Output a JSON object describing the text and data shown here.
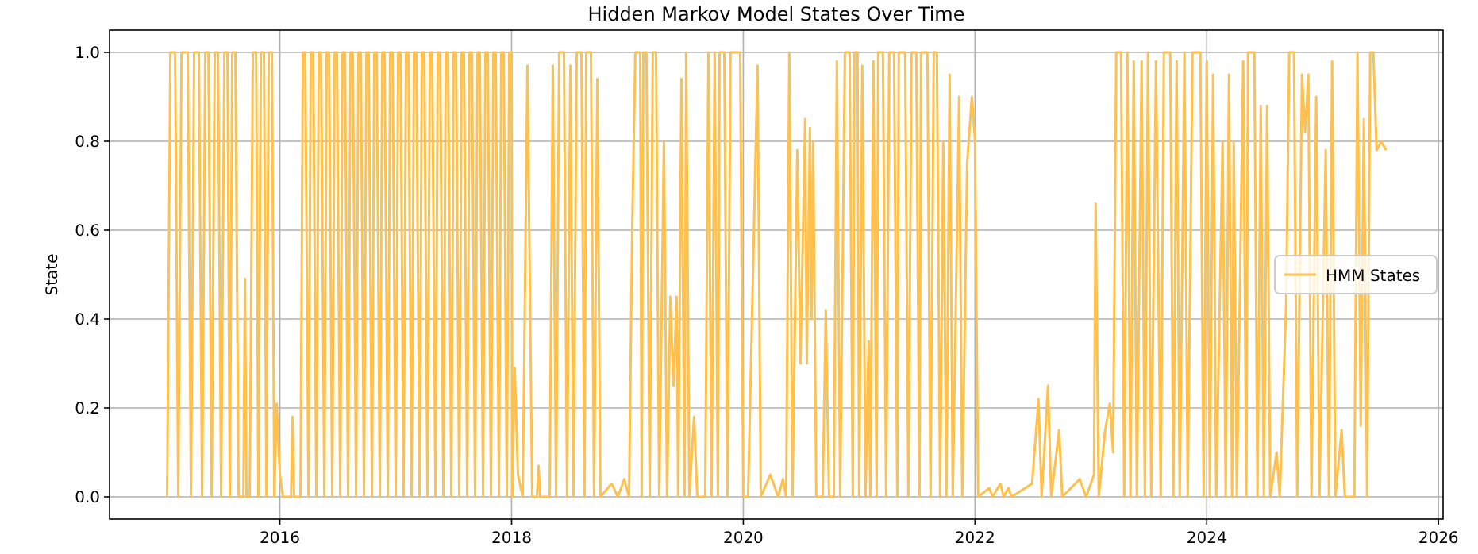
{
  "chart_data": {
    "type": "line",
    "title": "Hidden Markov Model States Over Time",
    "ylabel": "State",
    "xlim": [
      2014.53,
      2026.04
    ],
    "ylim": [
      -0.05,
      1.05
    ],
    "xticks": [
      2016,
      2018,
      2020,
      2022,
      2024,
      2026
    ],
    "yticks": [
      {
        "value": 0,
        "label": "0.0"
      },
      {
        "value": 0.2,
        "label": "0.2"
      },
      {
        "value": 0.4,
        "label": "0.4"
      },
      {
        "value": 0.6,
        "label": "0.6"
      },
      {
        "value": 0.8,
        "label": "0.8"
      },
      {
        "value": 1,
        "label": "1.0"
      }
    ],
    "grid": true,
    "legend": "right",
    "line_style": "solid",
    "marker": "none",
    "x": [
      2015.027,
      2015.055,
      2015.096,
      2015.123,
      2015.151,
      2015.205,
      2015.233,
      2015.26,
      2015.301,
      2015.329,
      2015.356,
      2015.384,
      2015.411,
      2015.438,
      2015.466,
      2015.493,
      2015.521,
      2015.548,
      2015.568,
      2015.589,
      2015.616,
      2015.644,
      2015.685,
      2015.699,
      2015.712,
      2015.74,
      2015.767,
      2015.795,
      2015.815,
      2015.836,
      2015.863,
      2015.884,
      2015.904,
      2015.932,
      2015.952,
      2015.973,
      2016.0,
      2016.027,
      2016.096,
      2016.11,
      2016.123,
      2016.164,
      2016.178,
      2016.199,
      2016.219,
      2016.247,
      2016.267,
      2016.288,
      2016.315,
      2016.336,
      2016.356,
      2016.384,
      2016.404,
      2016.425,
      2016.452,
      2016.473,
      2016.493,
      2016.521,
      2016.541,
      2016.562,
      2016.589,
      2016.61,
      2016.63,
      2016.658,
      2016.678,
      2016.699,
      2016.726,
      2016.747,
      2016.767,
      2016.795,
      2016.815,
      2016.836,
      2016.863,
      2016.884,
      2016.904,
      2016.932,
      2016.952,
      2016.973,
      2017.0,
      2017.021,
      2017.041,
      2017.068,
      2017.089,
      2017.11,
      2017.137,
      2017.158,
      2017.178,
      2017.206,
      2017.226,
      2017.247,
      2017.274,
      2017.295,
      2017.315,
      2017.343,
      2017.363,
      2017.384,
      2017.411,
      2017.432,
      2017.452,
      2017.48,
      2017.5,
      2017.521,
      2017.548,
      2017.569,
      2017.589,
      2017.617,
      2017.637,
      2017.658,
      2017.685,
      2017.706,
      2017.726,
      2017.754,
      2017.774,
      2017.795,
      2017.822,
      2017.843,
      2017.863,
      2017.891,
      2017.911,
      2017.932,
      2017.959,
      2017.98,
      2018.0,
      2018.007,
      2018.027,
      2018.055,
      2018.096,
      2018.137,
      2018.178,
      2018.219,
      2018.233,
      2018.247,
      2018.329,
      2018.356,
      2018.384,
      2018.411,
      2018.452,
      2018.479,
      2018.507,
      2018.534,
      2018.562,
      2018.603,
      2018.63,
      2018.644,
      2018.685,
      2018.712,
      2018.74,
      2018.767,
      2018.863,
      2018.918,
      2018.973,
      2019.014,
      2019.041,
      2019.068,
      2019.11,
      2019.123,
      2019.137,
      2019.164,
      2019.192,
      2019.219,
      2019.247,
      2019.274,
      2019.315,
      2019.342,
      2019.37,
      2019.397,
      2019.425,
      2019.438,
      2019.466,
      2019.493,
      2019.507,
      2019.534,
      2019.575,
      2019.603,
      2019.671,
      2019.699,
      2019.726,
      2019.753,
      2019.781,
      2019.795,
      2019.836,
      2019.863,
      2019.89,
      2019.973,
      2020.0,
      2020.041,
      2020.123,
      2020.151,
      2020.233,
      2020.301,
      2020.342,
      2020.37,
      2020.397,
      2020.425,
      2020.466,
      2020.493,
      2020.534,
      2020.548,
      2020.575,
      2020.589,
      2020.603,
      2020.63,
      2020.685,
      2020.712,
      2020.74,
      2020.781,
      2020.808,
      2020.836,
      2020.877,
      2020.918,
      2020.945,
      2020.959,
      2020.986,
      2021.0,
      2021.027,
      2021.055,
      2021.082,
      2021.096,
      2021.123,
      2021.151,
      2021.164,
      2021.205,
      2021.233,
      2021.26,
      2021.301,
      2021.329,
      2021.342,
      2021.397,
      2021.425,
      2021.452,
      2021.493,
      2021.521,
      2021.534,
      2021.589,
      2021.616,
      2021.644,
      2021.671,
      2021.699,
      2021.726,
      2021.753,
      2021.781,
      2021.808,
      2021.863,
      2021.89,
      2021.932,
      2021.973,
      2022.0,
      2022.027,
      2022.123,
      2022.151,
      2022.219,
      2022.247,
      2022.288,
      2022.315,
      2022.493,
      2022.548,
      2022.575,
      2022.63,
      2022.658,
      2022.726,
      2022.753,
      2022.904,
      2022.959,
      2023.027,
      2023.041,
      2023.068,
      2023.123,
      2023.164,
      2023.192,
      2023.219,
      2023.26,
      2023.288,
      2023.315,
      2023.342,
      2023.37,
      2023.397,
      2023.438,
      2023.466,
      2023.493,
      2023.521,
      2023.562,
      2023.603,
      2023.63,
      2023.685,
      2023.712,
      2023.74,
      2023.767,
      2023.808,
      2023.836,
      2023.877,
      2023.945,
      2023.973,
      2024.0,
      2024.027,
      2024.055,
      2024.082,
      2024.137,
      2024.164,
      2024.192,
      2024.219,
      2024.233,
      2024.26,
      2024.315,
      2024.342,
      2024.356,
      2024.411,
      2024.438,
      2024.466,
      2024.493,
      2024.521,
      2024.548,
      2024.603,
      2024.63,
      2024.685,
      2024.712,
      2024.753,
      2024.781,
      2024.822,
      2024.849,
      2024.877,
      2024.904,
      2024.945,
      2024.973,
      2025.027,
      2025.055,
      2025.082,
      2025.11,
      2025.164,
      2025.192,
      2025.274,
      2025.301,
      2025.329,
      2025.356,
      2025.384,
      2025.411,
      2025.438,
      2025.466,
      2025.507,
      2025.548
    ],
    "series": [
      {
        "name": "HMM States",
        "color": "#ffc04d",
        "values": [
          0,
          1,
          1,
          0,
          1,
          1,
          0,
          1,
          1,
          0,
          1,
          1,
          0,
          1,
          1,
          0,
          1,
          1,
          0,
          1,
          1,
          0,
          0,
          0.49,
          0,
          0,
          1,
          1,
          0,
          1,
          1,
          0,
          1,
          1,
          0,
          0.21,
          0.05,
          0,
          0,
          0.18,
          0,
          0,
          0,
          1,
          1,
          0,
          1,
          1,
          0,
          1,
          1,
          0,
          1,
          1,
          0,
          1,
          1,
          0,
          1,
          1,
          0,
          1,
          1,
          0,
          1,
          1,
          0,
          1,
          1,
          0,
          1,
          1,
          0,
          1,
          1,
          0,
          1,
          1,
          0,
          1,
          1,
          0,
          1,
          1,
          0,
          1,
          1,
          0,
          1,
          1,
          0,
          1,
          1,
          0,
          1,
          1,
          0,
          1,
          1,
          0,
          1,
          1,
          0,
          1,
          1,
          0,
          1,
          1,
          0,
          1,
          1,
          0,
          1,
          1,
          0,
          1,
          1,
          0,
          1,
          1,
          0,
          1,
          1,
          0,
          0.29,
          0.05,
          0,
          0.97,
          0,
          0,
          0.07,
          0,
          0,
          0.97,
          0,
          1,
          1,
          0,
          0.97,
          0,
          1,
          1,
          0,
          1,
          1,
          0,
          0.94,
          0,
          0.03,
          0,
          0.04,
          0,
          0.6,
          1,
          1,
          0,
          1,
          1,
          0,
          1,
          1,
          0,
          0.8,
          0,
          0.45,
          0.25,
          0.45,
          0,
          0.94,
          0,
          1,
          0,
          0.18,
          0,
          0,
          1,
          0,
          1,
          0,
          1,
          1,
          0,
          1,
          1,
          0,
          0,
          0.97,
          0,
          0.05,
          0,
          0.04,
          0,
          1,
          0,
          0.78,
          0.3,
          0.85,
          0.3,
          0.83,
          0.4,
          0.8,
          0,
          0,
          0.42,
          0,
          0,
          0.98,
          0,
          1,
          1,
          0,
          1,
          1,
          0,
          0.97,
          0,
          0.35,
          0,
          0.98,
          0,
          1,
          1,
          0,
          1,
          1,
          0,
          1,
          1,
          0,
          1,
          1,
          0,
          1,
          1,
          0,
          1,
          1,
          0,
          0.8,
          0,
          0.95,
          0,
          0.9,
          0,
          0.75,
          0.9,
          0.8,
          0,
          0.02,
          0,
          0.03,
          0,
          0.02,
          0,
          0.03,
          0.22,
          0,
          0.25,
          0,
          0.15,
          0,
          0.04,
          0,
          0.05,
          0.66,
          0,
          0.15,
          0.21,
          0.1,
          1,
          1,
          0,
          1,
          0,
          0.98,
          0,
          0.98,
          0,
          1,
          0,
          0.98,
          0,
          1,
          1,
          0,
          0.98,
          0,
          1,
          0,
          1,
          1,
          0,
          0.98,
          0,
          0.95,
          0,
          0.8,
          0,
          0.95,
          0,
          0.8,
          0,
          0.98,
          0,
          1,
          1,
          0,
          0.88,
          0,
          0.88,
          0,
          0.1,
          0,
          0.43,
          1,
          1,
          0,
          0.95,
          0.82,
          0.95,
          0,
          0.9,
          0,
          0.78,
          0,
          0.98,
          0,
          0.15,
          0,
          0,
          1,
          0.16,
          0.85,
          0,
          1,
          1,
          0.78,
          0.8,
          0.78
        ]
      }
    ]
  }
}
